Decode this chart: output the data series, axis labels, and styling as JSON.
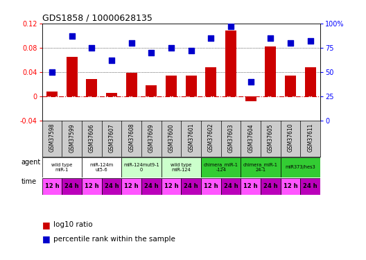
{
  "title": "GDS1858 / 10000628135",
  "samples": [
    "GSM37598",
    "GSM37599",
    "GSM37606",
    "GSM37607",
    "GSM37608",
    "GSM37609",
    "GSM37600",
    "GSM37601",
    "GSM37602",
    "GSM37603",
    "GSM37604",
    "GSM37605",
    "GSM37610",
    "GSM37611"
  ],
  "log10_ratio": [
    0.008,
    0.065,
    0.028,
    0.005,
    0.038,
    0.018,
    0.034,
    0.034,
    0.048,
    0.108,
    -0.008,
    0.082,
    0.034,
    0.048
  ],
  "percentile_rank": [
    50,
    87,
    75,
    62,
    80,
    70,
    75,
    72,
    85,
    97,
    40,
    85,
    80,
    82
  ],
  "ylim_left": [
    -0.04,
    0.12
  ],
  "ylim_right": [
    0,
    100
  ],
  "bar_color": "#cc0000",
  "dot_color": "#0000cc",
  "hline_zero_color": "#cc0000",
  "hline_dotted_values": [
    0.04,
    0.08
  ],
  "agents": [
    {
      "label": "wild type\nmiR-1",
      "start": 0,
      "end": 2,
      "color": "#ffffff"
    },
    {
      "label": "miR-124m\nut5-6",
      "start": 2,
      "end": 4,
      "color": "#ffffff"
    },
    {
      "label": "miR-124mut9-1\n0",
      "start": 4,
      "end": 6,
      "color": "#ccffcc"
    },
    {
      "label": "wild type\nmiR-124",
      "start": 6,
      "end": 8,
      "color": "#ccffcc"
    },
    {
      "label": "chimera_miR-1\n-124",
      "start": 8,
      "end": 10,
      "color": "#33cc33"
    },
    {
      "label": "chimera_miR-1\n24-1",
      "start": 10,
      "end": 12,
      "color": "#33cc33"
    },
    {
      "label": "miR373/hes3",
      "start": 12,
      "end": 14,
      "color": "#33cc33"
    }
  ],
  "time_colors": [
    "#ff55ff",
    "#bb00bb"
  ],
  "time_labels": [
    "12 h",
    "24 h"
  ],
  "gsm_bg": "#cccccc",
  "bg_color": "#ffffff",
  "bar_width": 0.55,
  "dot_size": 35
}
